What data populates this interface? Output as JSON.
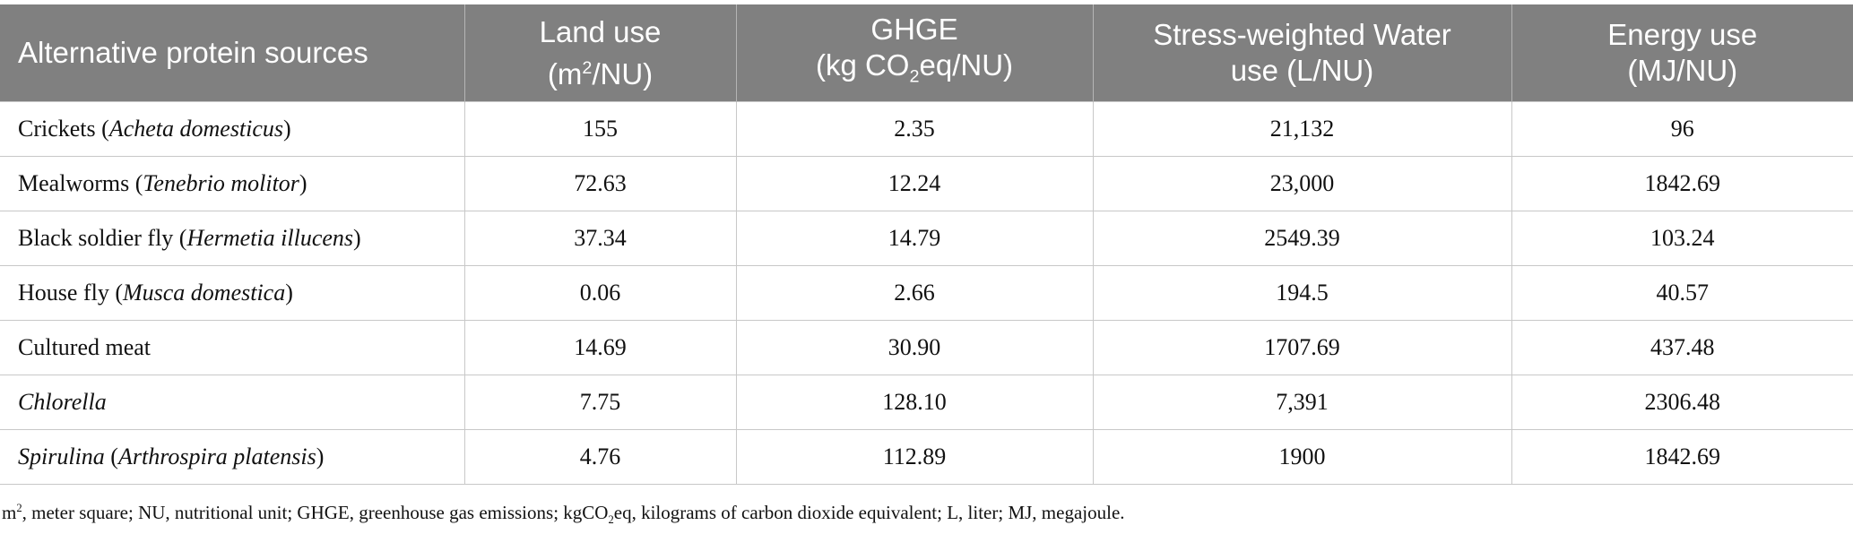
{
  "table": {
    "header": [
      {
        "lines": [
          [
            {
              "text": "Alternative protein sources"
            }
          ]
        ]
      },
      {
        "lines": [
          [
            {
              "text": "Land use"
            }
          ],
          [
            {
              "text": "(m"
            },
            {
              "text": "2",
              "style": "sup"
            },
            {
              "text": "/NU)"
            }
          ]
        ]
      },
      {
        "lines": [
          [
            {
              "text": "GHGE"
            }
          ],
          [
            {
              "text": "(kg CO"
            },
            {
              "text": "2",
              "style": "sub"
            },
            {
              "text": "eq/NU)"
            }
          ]
        ]
      },
      {
        "lines": [
          [
            {
              "text": "Stress-weighted Water"
            }
          ],
          [
            {
              "text": "use (L/NU)"
            }
          ]
        ]
      },
      {
        "lines": [
          [
            {
              "text": "Energy use"
            }
          ],
          [
            {
              "text": "(MJ/NU)"
            }
          ]
        ]
      }
    ],
    "rows": [
      {
        "source": [
          {
            "text": "Crickets ("
          },
          {
            "text": "Acheta domesticus",
            "style": "italic"
          },
          {
            "text": ")"
          }
        ],
        "values": [
          "155",
          "2.35",
          "21,132",
          "96"
        ]
      },
      {
        "source": [
          {
            "text": "Mealworms ("
          },
          {
            "text": "Tenebrio molitor",
            "style": "italic"
          },
          {
            "text": ")"
          }
        ],
        "values": [
          "72.63",
          "12.24",
          "23,000",
          "1842.69"
        ]
      },
      {
        "source": [
          {
            "text": "Black soldier fly ("
          },
          {
            "text": "Hermetia illucens",
            "style": "italic"
          },
          {
            "text": ")"
          }
        ],
        "values": [
          "37.34",
          "14.79",
          "2549.39",
          "103.24"
        ]
      },
      {
        "source": [
          {
            "text": "House fly ("
          },
          {
            "text": "Musca domestica",
            "style": "italic"
          },
          {
            "text": ")"
          }
        ],
        "values": [
          "0.06",
          "2.66",
          "194.5",
          "40.57"
        ]
      },
      {
        "source": [
          {
            "text": "Cultured meat"
          }
        ],
        "values": [
          "14.69",
          "30.90",
          "1707.69",
          "437.48"
        ]
      },
      {
        "source": [
          {
            "text": "Chlorella",
            "style": "italic"
          }
        ],
        "values": [
          "7.75",
          "128.10",
          "7,391",
          "2306.48"
        ]
      },
      {
        "source": [
          {
            "text": "Spirulina",
            "style": "italic"
          },
          {
            "text": " ("
          },
          {
            "text": "Arthrospira platensis",
            "style": "italic"
          },
          {
            "text": ")"
          }
        ],
        "values": [
          "4.76",
          "112.89",
          "1900",
          "1842.69"
        ]
      }
    ]
  },
  "footnote": [
    {
      "text": "m"
    },
    {
      "text": "2",
      "style": "sup"
    },
    {
      "text": ", meter square; NU, nutritional unit; GHGE, greenhouse gas emissions; kgCO"
    },
    {
      "text": "2",
      "style": "sub"
    },
    {
      "text": "eq, kilograms of carbon dioxide equivalent; L, liter; MJ, megajoule."
    }
  ]
}
